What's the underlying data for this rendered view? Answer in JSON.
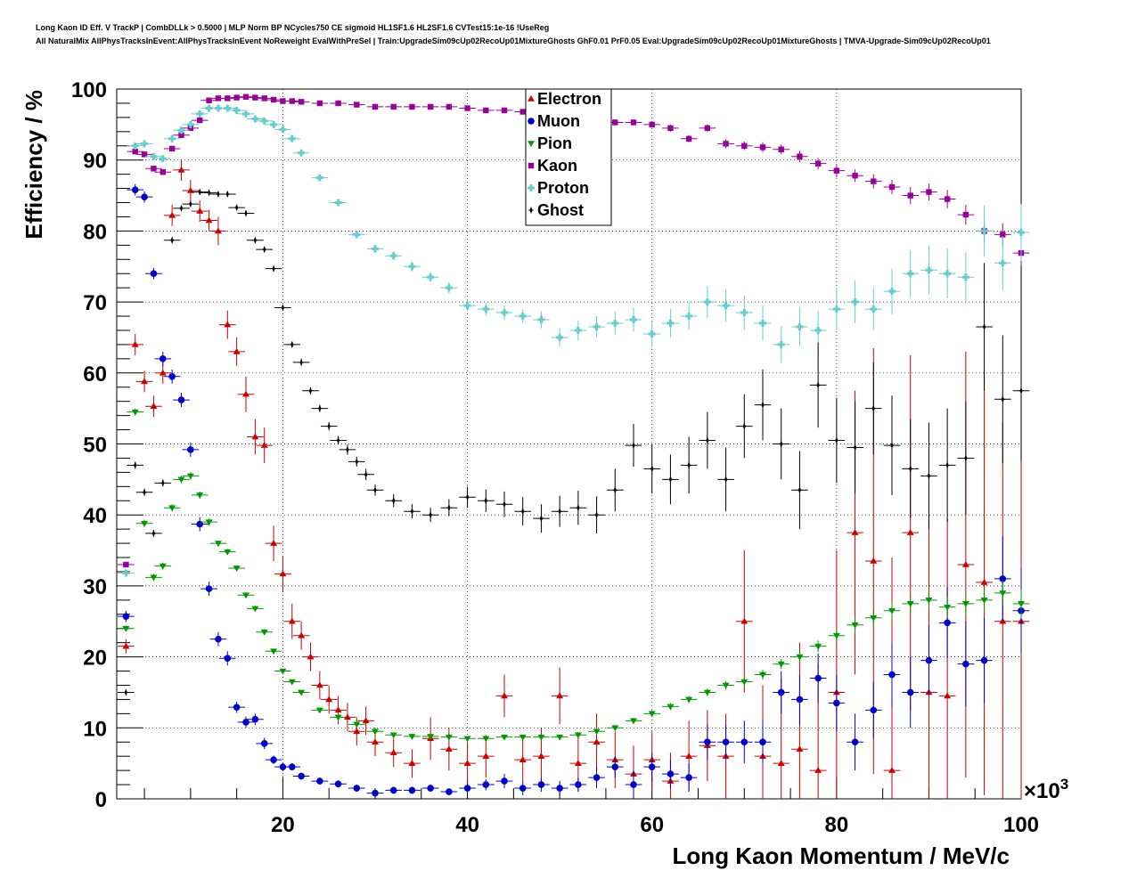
{
  "titles": {
    "line1": "Long Kaon ID Eff. V TrackP | CombDLLk > 0.5000 | MLP Norm BP NCycles750 CE sigmoid HL1SF1.6 HL2SF1.6 CVTest15:1e-16 !UseReg",
    "line2": "All NaturalMix AllPhysTracksInEvent:AllPhysTracksInEvent NoReweight EvalWithPreSel | Train:UpgradeSim09cUp02RecoUp01MixtureGhosts GhF0.01 PrF0.05 Eval:UpgradeSim09cUp02RecoUp01MixtureGhosts | TMVA-Upgrade-Sim09cUp02RecoUp01"
  },
  "chart_data": {
    "type": "scatter",
    "xlabel": "Long Kaon Momentum / MeV/c",
    "ylabel": "Efficiency / %",
    "x_multiplier_label": "×10",
    "x_multiplier_exp": "3",
    "xlim": [
      2,
      100
    ],
    "ylim": [
      0,
      100
    ],
    "x_ticks": [
      20,
      40,
      60,
      80,
      100
    ],
    "x_tick_labels": [
      "20",
      "40",
      "60",
      "80",
      "100"
    ],
    "y_ticks": [
      0,
      10,
      20,
      30,
      40,
      50,
      60,
      70,
      80,
      90,
      100
    ],
    "y_tick_labels": [
      "0",
      "10",
      "20",
      "30",
      "40",
      "50",
      "60",
      "70",
      "80",
      "90",
      "100"
    ],
    "grid": true,
    "legend_position": "top-center",
    "series": [
      {
        "name": "Electron",
        "color": "#cc0000",
        "marker": "triangle-up",
        "x": [
          3,
          4,
          5,
          6,
          7,
          8,
          9,
          10,
          11,
          12,
          13,
          14,
          15,
          16,
          17,
          18,
          19,
          20,
          21,
          22,
          23,
          24,
          25,
          26,
          27,
          28,
          29,
          30,
          32,
          34,
          36,
          38,
          40,
          42,
          44,
          46,
          48,
          50,
          52,
          54,
          56,
          58,
          60,
          62,
          64,
          66,
          68,
          70,
          72,
          74,
          76,
          78,
          80,
          82,
          84,
          86,
          88,
          90,
          92,
          94,
          96,
          98,
          100
        ],
        "y": [
          21.5,
          64,
          58.8,
          55.3,
          60,
          82.2,
          88.6,
          85.7,
          82.8,
          81.5,
          80,
          66.8,
          63,
          57,
          51,
          49.8,
          36,
          31.7,
          25,
          23,
          20,
          16,
          14,
          12.5,
          11.5,
          9.5,
          11,
          8,
          6.5,
          5,
          8.5,
          7,
          5,
          6,
          14.5,
          5.5,
          6,
          14.5,
          5,
          8,
          5.5,
          3.5,
          5.5,
          2.5,
          6,
          7.5,
          6,
          25,
          6,
          5,
          7,
          4,
          15,
          37.5,
          33.5,
          4,
          37.5,
          15,
          14.5,
          33,
          30.5,
          25,
          25
        ],
        "err": [
          1,
          1.5,
          1.5,
          1.5,
          1.5,
          1.5,
          1.5,
          1.5,
          1.5,
          1.5,
          2,
          2,
          2,
          2.5,
          2.5,
          2.5,
          2.5,
          2.5,
          2.5,
          2,
          2,
          2,
          2,
          2,
          2,
          2,
          2,
          2,
          2,
          2,
          3,
          3,
          3,
          3,
          3,
          3,
          4,
          4,
          4,
          4,
          4,
          4,
          4,
          4,
          5,
          5,
          6,
          10,
          10,
          12,
          15,
          15,
          20,
          20,
          30,
          30,
          25,
          25,
          25,
          30,
          30,
          28,
          25
        ]
      },
      {
        "name": "Muon",
        "color": "#0000cc",
        "marker": "circle",
        "x": [
          3,
          4,
          5,
          6,
          7,
          8,
          9,
          10,
          11,
          12,
          13,
          14,
          15,
          16,
          17,
          18,
          19,
          20,
          21,
          22,
          24,
          26,
          28,
          30,
          32,
          34,
          36,
          38,
          40,
          42,
          44,
          46,
          48,
          50,
          52,
          54,
          56,
          58,
          60,
          62,
          64,
          66,
          68,
          70,
          72,
          74,
          76,
          78,
          80,
          82,
          84,
          86,
          88,
          90,
          92,
          94,
          96,
          98,
          100
        ],
        "y": [
          25.7,
          85.8,
          84.8,
          74,
          62,
          59.5,
          56.2,
          49.2,
          38.7,
          29.6,
          22.5,
          19.8,
          12.9,
          10.8,
          11.2,
          7.8,
          5.5,
          4.5,
          4.5,
          3.2,
          2.5,
          2.1,
          1.5,
          0.8,
          1.2,
          1.2,
          1.5,
          1.0,
          1.5,
          2.0,
          2.5,
          1.5,
          2.0,
          1.5,
          2.0,
          3.0,
          4.5,
          2.0,
          4.5,
          3.5,
          3.0,
          8.0,
          8.0,
          8.0,
          8.0,
          15.0,
          14.0,
          17.0,
          13.5,
          8.0,
          12.5,
          17.5,
          15.0,
          19.5,
          24.8,
          19.0,
          19.5,
          31.0,
          26.5
        ],
        "err": [
          0.8,
          0.8,
          0.8,
          0.8,
          1,
          1,
          1,
          1,
          1,
          1,
          1,
          1,
          0.8,
          0.8,
          0.8,
          0.8,
          0.6,
          0.6,
          0.5,
          0.5,
          0.5,
          0.5,
          0.5,
          0.5,
          0.5,
          0.5,
          0.5,
          0.5,
          0.7,
          0.8,
          1,
          1,
          1,
          1,
          1,
          1.5,
          1.5,
          2,
          2,
          2,
          2,
          2.5,
          2.5,
          3,
          3,
          3,
          3.5,
          3.5,
          4,
          4,
          4,
          4.5,
          5,
          5,
          5,
          6,
          6,
          6,
          6
        ]
      },
      {
        "name": "Pion",
        "color": "#009900",
        "marker": "triangle-down",
        "x": [
          3,
          4,
          5,
          6,
          7,
          8,
          9,
          10,
          11,
          12,
          13,
          14,
          15,
          16,
          17,
          18,
          19,
          20,
          21,
          22,
          24,
          26,
          28,
          30,
          32,
          34,
          36,
          38,
          40,
          42,
          44,
          46,
          48,
          50,
          52,
          54,
          56,
          58,
          60,
          62,
          64,
          66,
          68,
          70,
          72,
          74,
          76,
          78,
          80,
          82,
          84,
          86,
          88,
          90,
          92,
          94,
          96,
          98,
          100
        ],
        "y": [
          24,
          54.5,
          38.8,
          31.2,
          32.8,
          41,
          45,
          45.5,
          42.8,
          39,
          36,
          34.8,
          32.5,
          28.7,
          26.8,
          23.5,
          20.8,
          18,
          16.5,
          15,
          12.5,
          11.5,
          10.5,
          9.5,
          9,
          8.8,
          8.8,
          8.7,
          8.5,
          8.5,
          8.7,
          8.7,
          8.7,
          8.7,
          9,
          9.5,
          10,
          11,
          12,
          13,
          14,
          15,
          16,
          16.5,
          17.5,
          19,
          20,
          21.5,
          23,
          24.5,
          25.5,
          26.5,
          27.5,
          28,
          27,
          27.5,
          28,
          29,
          27.5
        ],
        "err": [
          0.4,
          0.5,
          0.5,
          0.5,
          0.5,
          0.5,
          0.5,
          0.5,
          0.5,
          0.5,
          0.4,
          0.4,
          0.4,
          0.4,
          0.4,
          0.4,
          0.3,
          0.3,
          0.3,
          0.3,
          0.3,
          0.3,
          0.3,
          0.3,
          0.3,
          0.3,
          0.3,
          0.3,
          0.3,
          0.3,
          0.3,
          0.3,
          0.3,
          0.3,
          0.4,
          0.4,
          0.4,
          0.4,
          0.5,
          0.5,
          0.5,
          0.5,
          0.6,
          0.6,
          0.7,
          0.7,
          0.8,
          0.8,
          0.9,
          1,
          1,
          1.2,
          1.2,
          1.3,
          1.4,
          1.5,
          1.6,
          1.8,
          2
        ]
      },
      {
        "name": "Kaon",
        "color": "#990099",
        "marker": "square",
        "x": [
          3,
          4,
          5,
          6,
          7,
          8,
          9,
          10,
          11,
          12,
          13,
          14,
          15,
          16,
          17,
          18,
          19,
          20,
          21,
          22,
          24,
          26,
          28,
          30,
          32,
          34,
          36,
          38,
          40,
          42,
          44,
          46,
          48,
          50,
          52,
          54,
          56,
          58,
          60,
          62,
          64,
          66,
          68,
          70,
          72,
          74,
          76,
          78,
          80,
          82,
          84,
          86,
          88,
          90,
          92,
          94,
          96,
          98,
          100
        ],
        "y": [
          33,
          91.2,
          90.8,
          88.8,
          88.3,
          91.6,
          93.5,
          94.5,
          95.6,
          98.4,
          98.7,
          98.7,
          98.8,
          98.9,
          98.8,
          98.7,
          98.5,
          98.3,
          98.3,
          98.2,
          98.0,
          98.0,
          97.8,
          97.5,
          97.5,
          97.5,
          97.5,
          97.5,
          97.3,
          97.0,
          97.0,
          96.8,
          96.5,
          96.0,
          95.8,
          95.5,
          95.3,
          95.3,
          95.0,
          94.5,
          93.0,
          94.5,
          92.3,
          92.0,
          91.8,
          91.5,
          90.5,
          89.5,
          88.5,
          87.8,
          87.0,
          86.2,
          85.0,
          85.5,
          84.5,
          82.3,
          80.0,
          79.5,
          76.9
        ],
        "err": [
          0.3,
          0.3,
          0.3,
          0.3,
          0.3,
          0.3,
          0.3,
          0.3,
          0.2,
          0.2,
          0.2,
          0.2,
          0.2,
          0.2,
          0.2,
          0.2,
          0.2,
          0.2,
          0.2,
          0.2,
          0.2,
          0.2,
          0.2,
          0.2,
          0.2,
          0.2,
          0.2,
          0.2,
          0.2,
          0.2,
          0.2,
          0.2,
          0.3,
          0.3,
          0.3,
          0.3,
          0.4,
          0.4,
          0.4,
          0.5,
          0.5,
          0.5,
          0.6,
          0.6,
          0.7,
          0.7,
          0.8,
          0.8,
          0.9,
          0.9,
          1,
          1,
          1.2,
          1.2,
          1.3,
          1.4,
          1.5,
          1.6,
          1.8
        ]
      },
      {
        "name": "Proton",
        "color": "#66cccc",
        "marker": "cross",
        "x": [
          3,
          4,
          5,
          6,
          7,
          8,
          9,
          10,
          11,
          12,
          13,
          14,
          15,
          16,
          17,
          18,
          19,
          20,
          21,
          22,
          24,
          26,
          28,
          30,
          32,
          34,
          36,
          38,
          40,
          42,
          44,
          46,
          48,
          50,
          52,
          54,
          56,
          58,
          60,
          62,
          64,
          66,
          68,
          70,
          72,
          74,
          76,
          78,
          80,
          82,
          84,
          86,
          88,
          90,
          92,
          94,
          96,
          98,
          100
        ],
        "y": [
          31.8,
          92.0,
          92.3,
          90.5,
          90.2,
          93.0,
          94.2,
          95.0,
          96.5,
          97.3,
          97.3,
          97.3,
          97.0,
          96.5,
          95.8,
          95.5,
          95.0,
          94.3,
          93.0,
          91.0,
          87.5,
          84.0,
          79.5,
          77.5,
          76.5,
          75.0,
          73.5,
          72.0,
          69.5,
          69.0,
          68.5,
          68.0,
          67.5,
          65.0,
          66.0,
          66.5,
          67.0,
          67.5,
          65.5,
          67.0,
          68.0,
          70.0,
          69.5,
          68.5,
          67.0,
          64.0,
          66.5,
          66.0,
          69.0,
          70.0,
          69.0,
          71.5,
          74.0,
          74.5,
          74.0,
          73.5,
          80.0,
          75.5,
          79.8
        ],
        "err": [
          0.3,
          0.3,
          0.3,
          0.3,
          0.3,
          0.3,
          0.3,
          0.3,
          0.2,
          0.2,
          0.2,
          0.2,
          0.2,
          0.2,
          0.2,
          0.2,
          0.2,
          0.3,
          0.3,
          0.3,
          0.4,
          0.4,
          0.5,
          0.6,
          0.6,
          0.7,
          0.7,
          0.8,
          0.8,
          0.9,
          1,
          1,
          1.2,
          1.3,
          1.4,
          1.5,
          1.6,
          1.7,
          1.8,
          2,
          2,
          2.2,
          2.3,
          2.4,
          2.5,
          2.6,
          2.7,
          2.8,
          3,
          3,
          3,
          3.2,
          3.3,
          3.4,
          3.5,
          3.5,
          3.6,
          3.8,
          4
        ]
      },
      {
        "name": "Ghost",
        "color": "#000000",
        "marker": "star",
        "x": [
          3,
          4,
          5,
          6,
          7,
          8,
          9,
          10,
          11,
          12,
          13,
          14,
          15,
          16,
          17,
          18,
          19,
          20,
          21,
          22,
          23,
          24,
          25,
          26,
          27,
          28,
          29,
          30,
          32,
          34,
          36,
          38,
          40,
          42,
          44,
          46,
          48,
          50,
          52,
          54,
          56,
          58,
          60,
          62,
          64,
          66,
          68,
          70,
          72,
          74,
          76,
          78,
          80,
          82,
          84,
          86,
          88,
          90,
          92,
          94,
          96,
          98,
          100
        ],
        "y": [
          15,
          47,
          43.2,
          37.4,
          44.5,
          78.7,
          83.2,
          83.8,
          85.5,
          85.4,
          85.2,
          85.2,
          83.3,
          82.5,
          78.7,
          77.4,
          74.7,
          69.2,
          64,
          61.5,
          57.5,
          55,
          52.5,
          50.5,
          49.2,
          47.5,
          45.7,
          43.5,
          42.0,
          40.5,
          40.0,
          41.0,
          42.5,
          42.0,
          41.5,
          40.5,
          39.5,
          40.5,
          41.0,
          40.0,
          43.5,
          49.8,
          46.5,
          45.0,
          47.0,
          50.5,
          45.0,
          52.5,
          55.5,
          50.0,
          43.5,
          58.3,
          50.5,
          49.5,
          55.0,
          49.8,
          46.5,
          45.5,
          47.0,
          48.0,
          66.5,
          56.3,
          57.5
        ],
        "err": [
          0.3,
          0.5,
          0.5,
          0.5,
          0.5,
          0.3,
          0.3,
          0.3,
          0.2,
          0.2,
          0.2,
          0.2,
          0.3,
          0.3,
          0.3,
          0.3,
          0.4,
          0.4,
          0.4,
          0.5,
          0.5,
          0.5,
          0.6,
          0.6,
          0.7,
          0.7,
          0.8,
          0.8,
          0.9,
          1.0,
          1.0,
          1.2,
          1.5,
          1.6,
          1.8,
          2.0,
          2.0,
          2.2,
          2.4,
          2.6,
          3.0,
          3.0,
          3.5,
          3.5,
          4.0,
          4.0,
          4.5,
          4.5,
          5.0,
          5.0,
          5.5,
          6.0,
          6.0,
          6.5,
          6.5,
          7.0,
          7.0,
          7.5,
          8.0,
          8.0,
          9.0,
          9.0,
          10.0
        ]
      }
    ]
  }
}
